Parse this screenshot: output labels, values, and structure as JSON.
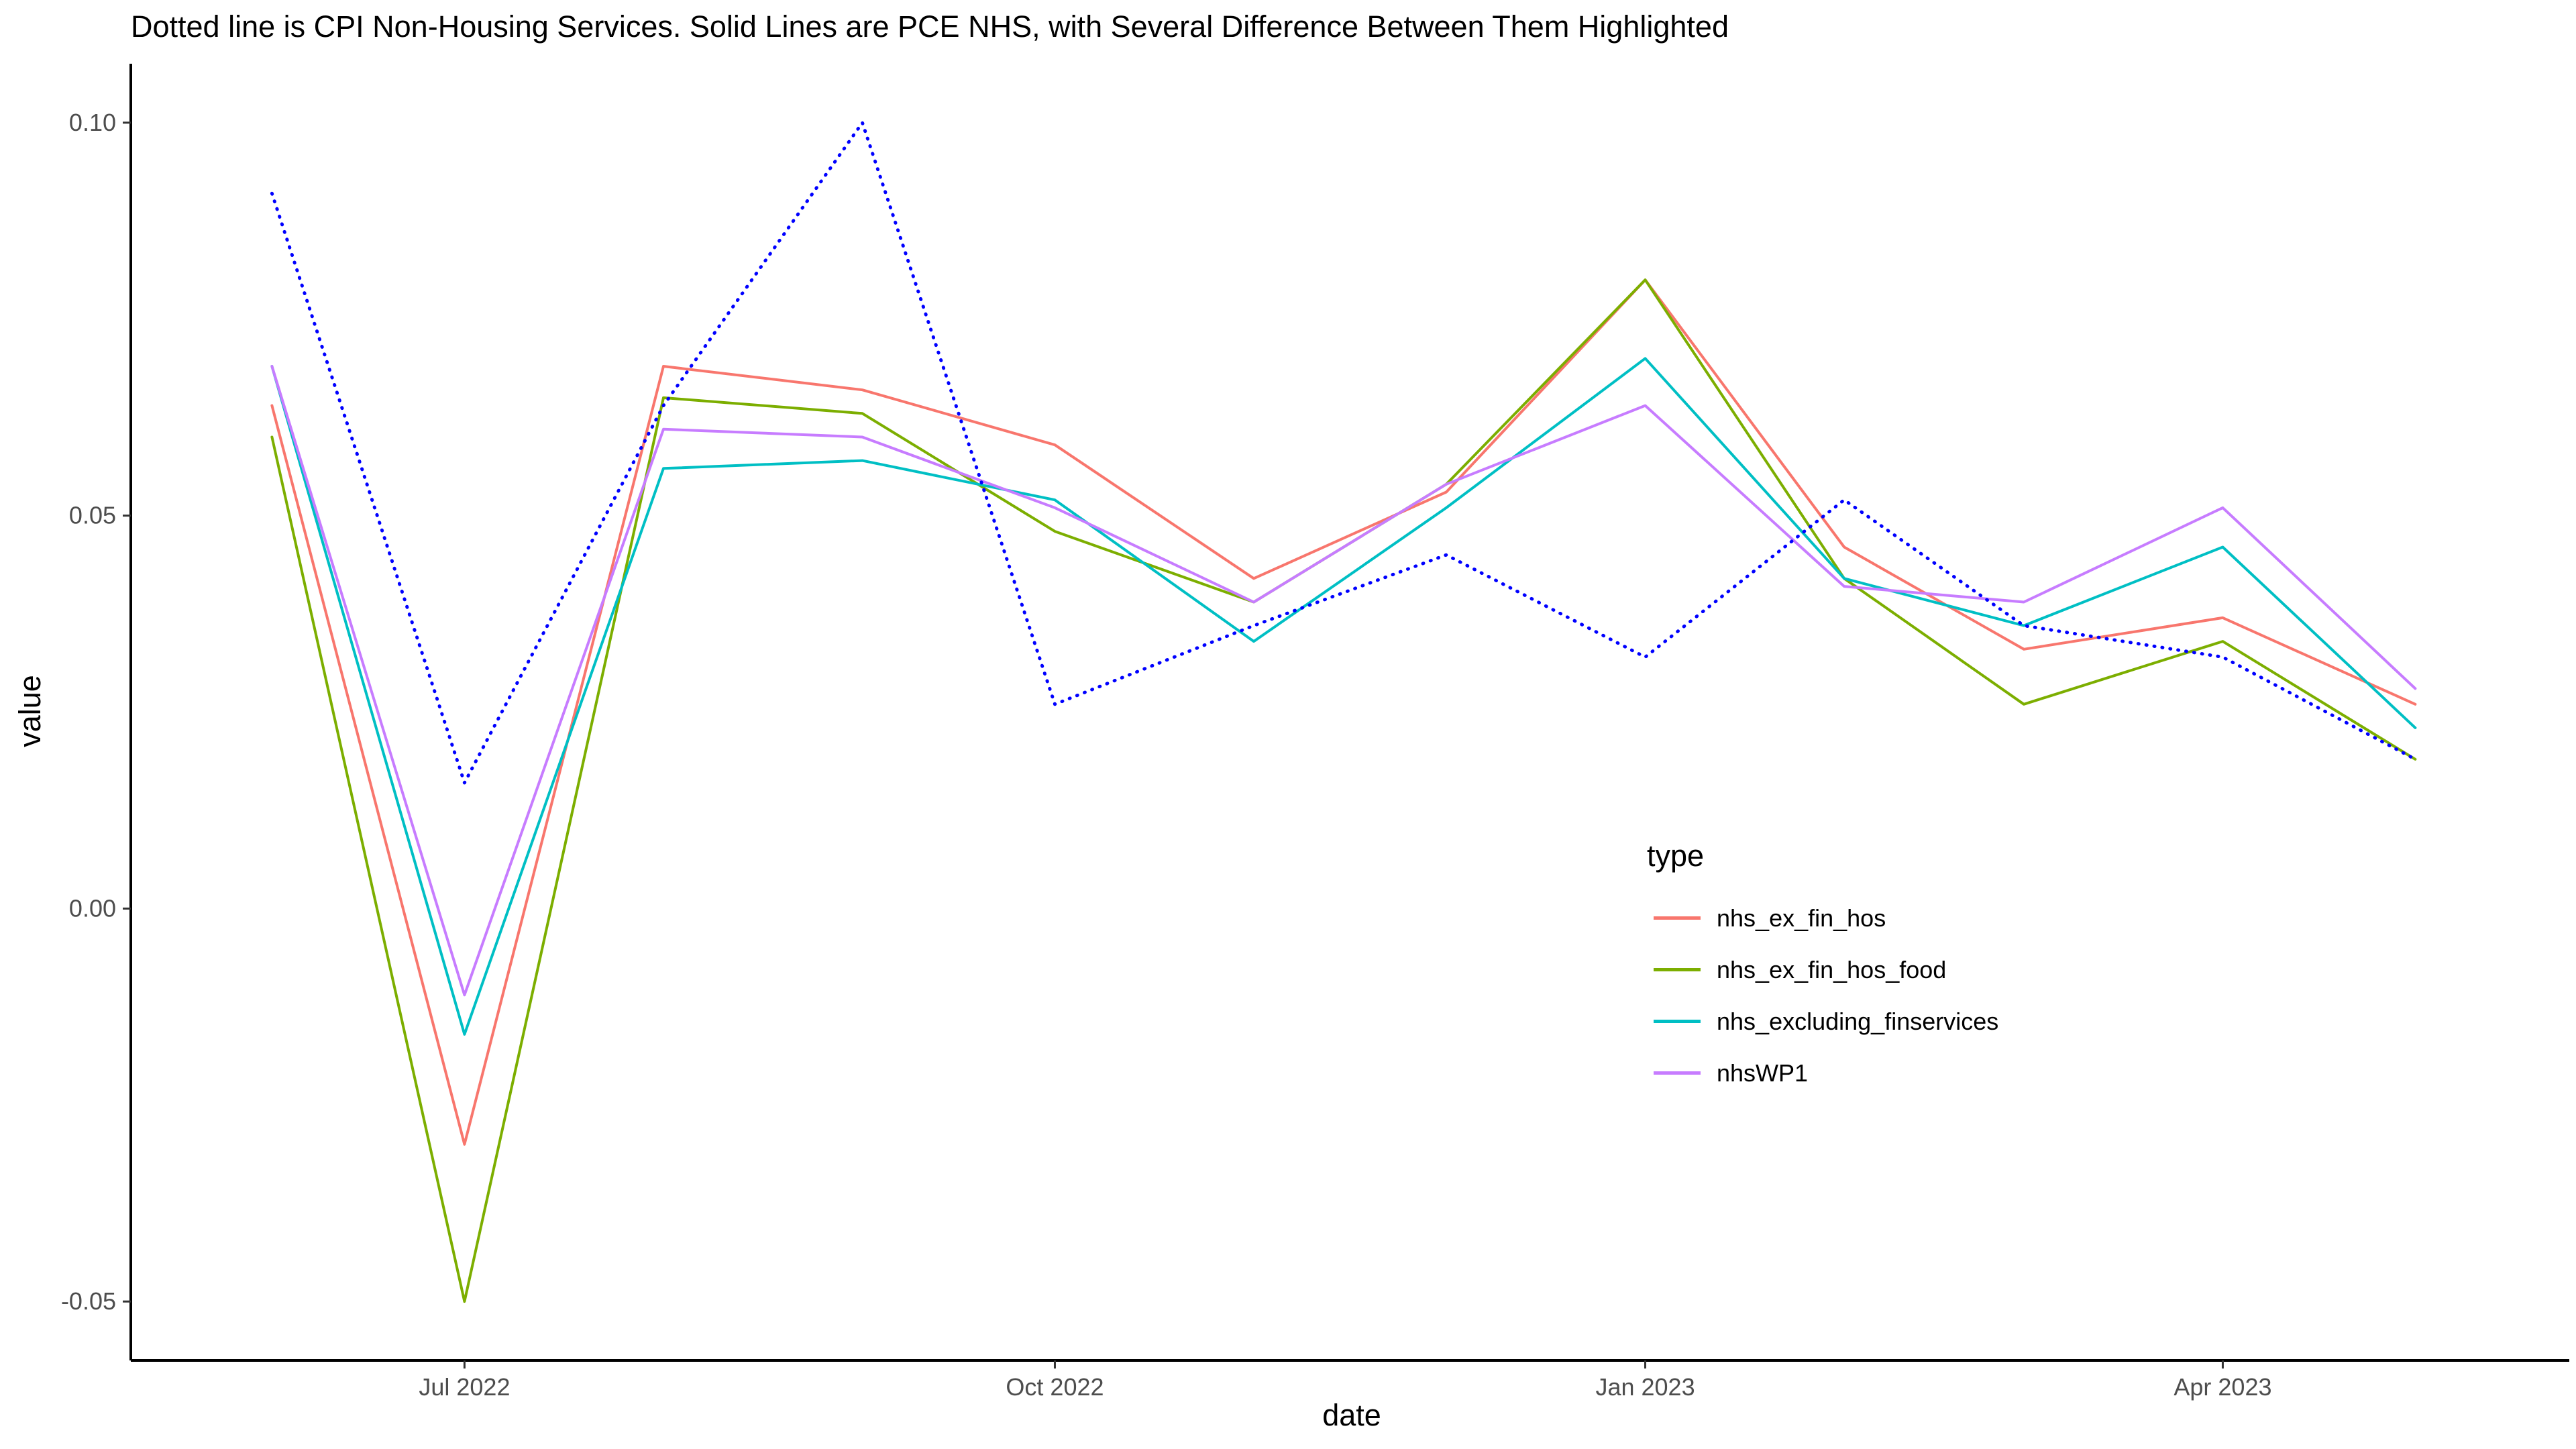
{
  "chart_data": {
    "type": "line",
    "title": "Dotted line is CPI Non-Housing Services. Solid Lines are PCE NHS, with Several Difference Between Them Highlighted",
    "xlabel": "date",
    "ylabel": "value",
    "x": [
      "2022-06-01",
      "2022-07-01",
      "2022-08-01",
      "2022-09-01",
      "2022-10-01",
      "2022-11-01",
      "2022-12-01",
      "2023-01-01",
      "2023-02-01",
      "2023-03-01",
      "2023-04-01",
      "2023-05-01"
    ],
    "x_ticks": [
      {
        "date": "2022-07-01",
        "label": "Jul 2022"
      },
      {
        "date": "2022-10-01",
        "label": "Oct 2022"
      },
      {
        "date": "2023-01-01",
        "label": "Jan 2023"
      },
      {
        "date": "2023-04-01",
        "label": "Apr 2023"
      }
    ],
    "y_ticks": [
      {
        "value": -0.05,
        "label": "-0.05"
      },
      {
        "value": 0.0,
        "label": "0.00"
      },
      {
        "value": 0.05,
        "label": "0.05"
      },
      {
        "value": 0.1,
        "label": "0.10"
      }
    ],
    "xlim": [
      "2022-05-10",
      "2023-05-25"
    ],
    "ylim": [
      -0.0575,
      0.1075
    ],
    "grid": false,
    "legend": {
      "title": "type",
      "position": "right-inside-bottom"
    },
    "series": [
      {
        "name": "nhs_ex_fin_hos",
        "color": "#F8766D",
        "style": "solid",
        "values": [
          0.064,
          -0.03,
          0.069,
          0.066,
          0.059,
          0.042,
          0.053,
          0.08,
          0.046,
          0.033,
          0.037,
          0.026
        ]
      },
      {
        "name": "nhs_ex_fin_hos_food",
        "color": "#7CAE00",
        "style": "solid",
        "values": [
          0.06,
          -0.05,
          0.065,
          0.063,
          0.048,
          0.039,
          0.054,
          0.08,
          0.042,
          0.026,
          0.034,
          0.019
        ]
      },
      {
        "name": "nhs_excluding_finservices",
        "color": "#00BFC4",
        "style": "solid",
        "values": [
          0.069,
          -0.016,
          0.056,
          0.057,
          0.052,
          0.034,
          0.051,
          0.07,
          0.042,
          0.036,
          0.046,
          0.023
        ]
      },
      {
        "name": "nhsWP1",
        "color": "#C77CFF",
        "style": "solid",
        "values": [
          0.069,
          -0.011,
          0.061,
          0.06,
          0.051,
          0.039,
          0.054,
          0.064,
          0.041,
          0.039,
          0.051,
          0.028
        ]
      },
      {
        "color": "#0000FF",
        "style": "dotted",
        "values": [
          0.091,
          0.016,
          0.064,
          0.1,
          0.026,
          0.036,
          0.045,
          0.032,
          0.052,
          0.036,
          0.032,
          0.019
        ]
      }
    ]
  }
}
